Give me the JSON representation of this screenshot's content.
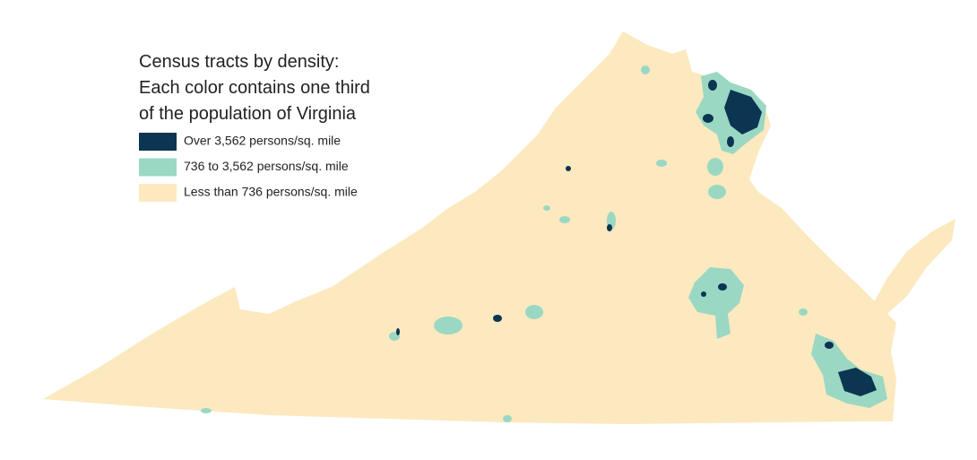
{
  "map": {
    "title": [
      "Census tracts by density:",
      "Each color contains one third",
      "of the population of Virginia"
    ],
    "legend": [
      {
        "label": "Over 3,562 persons/sq. mile",
        "color": "#0b3551"
      },
      {
        "label": "736 to 3,562 persons/sq. mile",
        "color": "#9bd8c3"
      },
      {
        "label": "Less than 736 persons/sq. mile",
        "color": "#fde9bf"
      }
    ]
  }
}
